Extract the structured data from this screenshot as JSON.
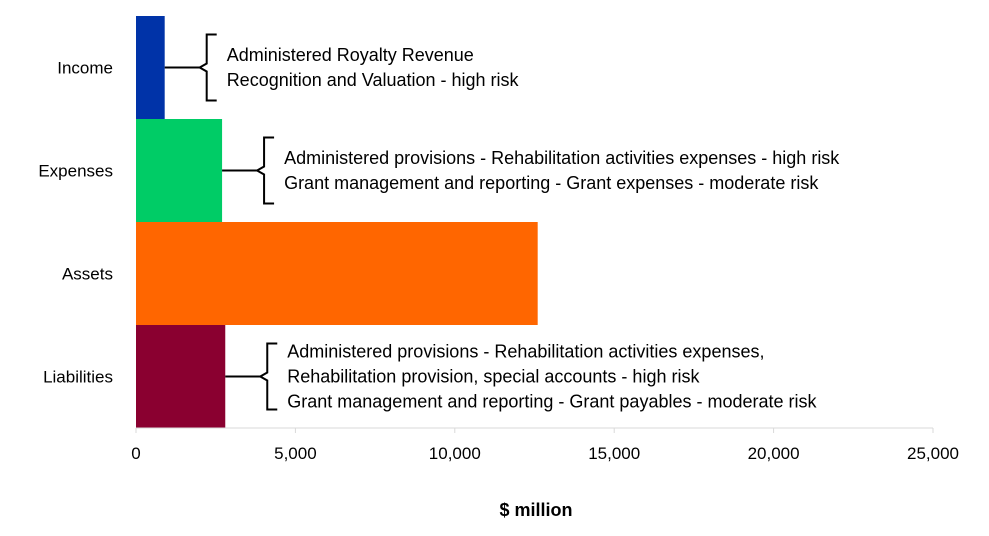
{
  "chart_data": {
    "type": "bar",
    "orientation": "horizontal",
    "categories": [
      "Income",
      "Expenses",
      "Assets",
      "Liabilities"
    ],
    "values": [
      900,
      2700,
      12600,
      2800
    ],
    "colors": [
      "#0033A8",
      "#00CC66",
      "#FF6600",
      "#8A0030"
    ],
    "xlabel": "$ million",
    "xlim": [
      0,
      25000
    ],
    "xticks": [
      0,
      5000,
      10000,
      15000,
      20000,
      25000
    ],
    "xtick_labels": [
      "0",
      "5,000",
      "10,000",
      "15,000",
      "20,000",
      "25,000"
    ],
    "grid": false,
    "annotations": [
      {
        "category": "Income",
        "lines": [
          "Administered Royalty Revenue",
          "Recognition and Valuation - high risk"
        ]
      },
      {
        "category": "Expenses",
        "lines": [
          "Administered provisions - Rehabilitation activities expenses - high risk",
          "Grant management and reporting - Grant expenses - moderate risk"
        ]
      },
      {
        "category": "Assets",
        "lines": []
      },
      {
        "category": "Liabilities",
        "lines": [
          "Administered provisions - Rehabilitation activities expenses,",
          "Rehabilitation provision, special accounts - high risk",
          "Grant management and reporting - Grant payables - moderate risk"
        ]
      }
    ]
  }
}
